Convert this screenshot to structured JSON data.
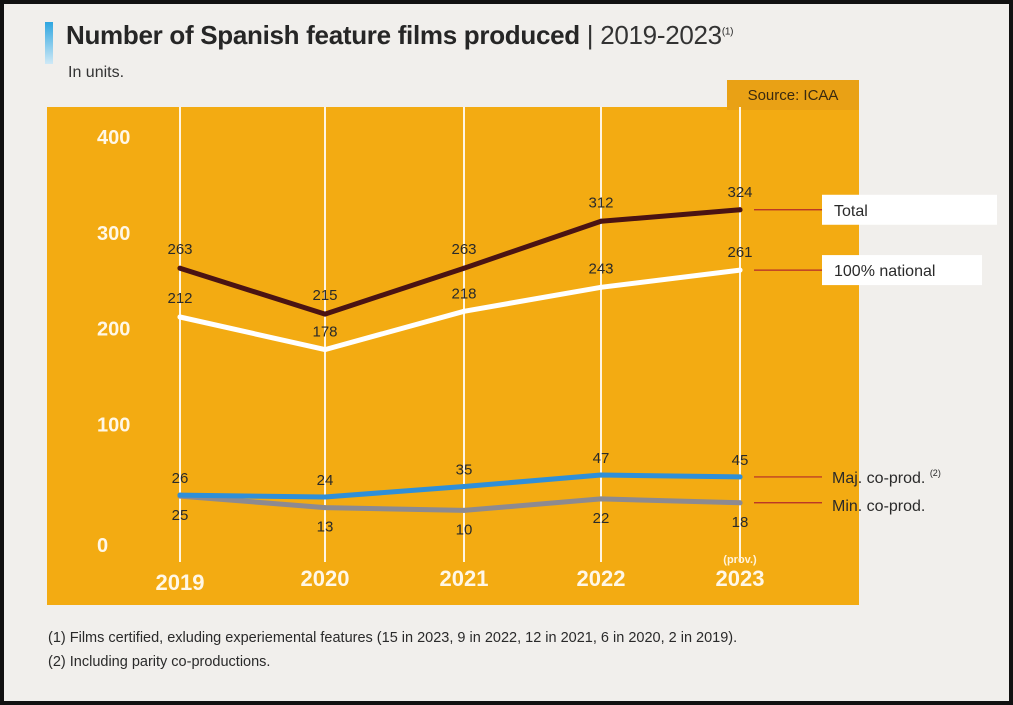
{
  "colors": {
    "panel": "#f3ab12",
    "source_tab": "#e9a115",
    "total": "#4a1313",
    "national": "#ffffff",
    "maj": "#2f8fd8",
    "min": "#8d8a90",
    "gridline": "#fff5e0",
    "leader": "#b3282a"
  },
  "header": {
    "title": "Number of Spanish feature films produced",
    "separator": "|",
    "years": "2019-2023",
    "title_note": "(1)",
    "subtitle": "In units."
  },
  "footnotes": [
    "(1) Films certified, exluding experiemental features (15 in 2023, 9 in 2022, 12 in 2021, 6 in 2020, 2 in 2019).",
    "(2) Including parity co-productions."
  ],
  "chart_data": {
    "type": "line",
    "source": "Source: ICAA",
    "x": [
      "2019",
      "2020",
      "2021",
      "2022",
      "2023"
    ],
    "x_note": "(prov.)",
    "ylim": [
      0,
      400
    ],
    "yticks": [
      0,
      100,
      200,
      300,
      400
    ],
    "series": [
      {
        "key": "total",
        "name": "Total",
        "values": [
          263,
          215,
          263,
          312,
          324
        ]
      },
      {
        "key": "national",
        "name": "100% national",
        "values": [
          212,
          178,
          218,
          243,
          261
        ]
      },
      {
        "key": "maj",
        "name": "Maj. co-prod.",
        "note": "(2)",
        "values": [
          26,
          24,
          35,
          47,
          45
        ]
      },
      {
        "key": "min",
        "name": "Min. co-prod.",
        "values": [
          25,
          13,
          10,
          22,
          18
        ]
      }
    ]
  }
}
